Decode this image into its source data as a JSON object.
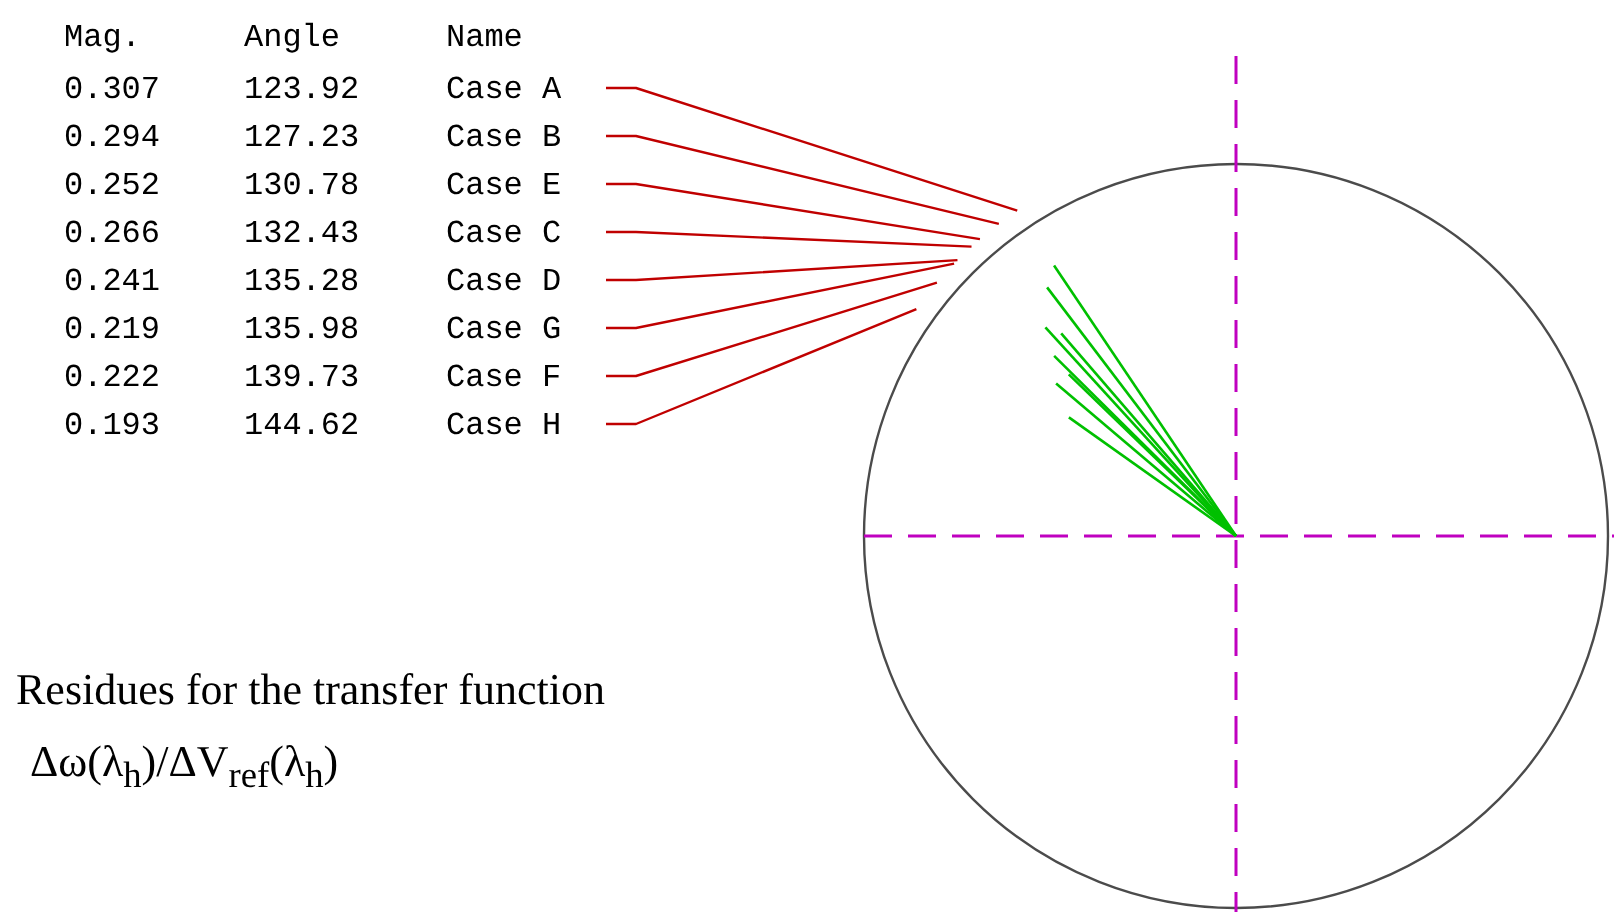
{
  "chart_data": {
    "type": "other",
    "legend_title": "Name",
    "categories": [
      "Case A",
      "Case B",
      "Case E",
      "Case C",
      "Case D",
      "Case G",
      "Case F",
      "Case H"
    ],
    "series": [
      {
        "name": "Mag.",
        "values": [
          0.307,
          0.294,
          0.252,
          0.266,
          0.241,
          0.219,
          0.222,
          0.193
        ],
        "value_labels": [
          "0.307",
          "0.294",
          "0.252",
          "0.266",
          "0.241",
          "0.219",
          "0.222",
          "0.193"
        ]
      },
      {
        "name": "Angle",
        "values": [
          123.92,
          127.23,
          130.78,
          132.43,
          135.28,
          135.98,
          139.73,
          144.62
        ],
        "value_labels": [
          "123.92",
          "127.23",
          "130.78",
          "132.43",
          "135.28",
          "135.98",
          "139.73",
          "144.62"
        ]
      }
    ],
    "annotations": [
      "Residues for the transfer function",
      "Δω(λ$_{h}$)/ΔV$_{ref}$(λ$_{h}$)"
    ]
  }
}
